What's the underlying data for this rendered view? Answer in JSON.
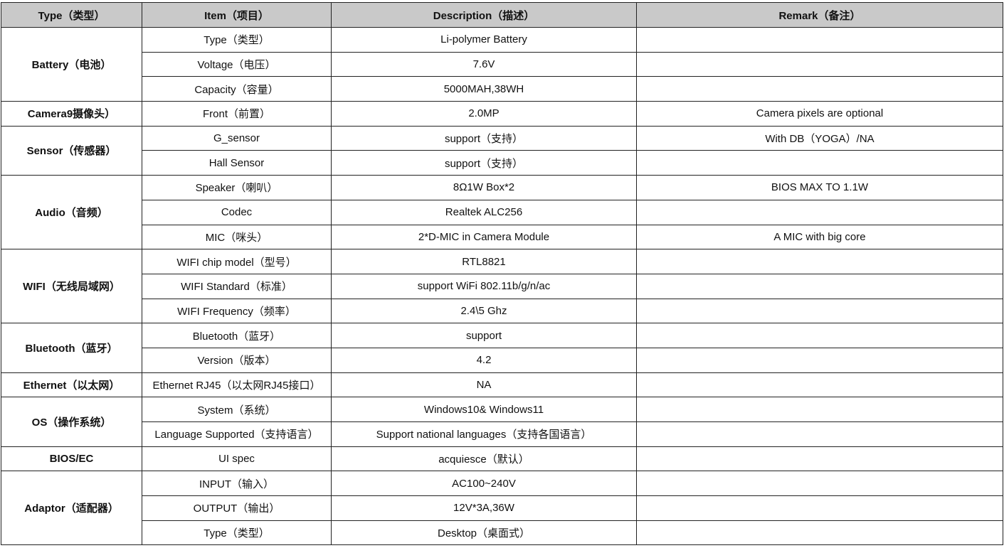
{
  "header": {
    "type": "Type（类型）",
    "item": "Item（项目）",
    "description": "Description（描述）",
    "remark": "Remark（备注）"
  },
  "colors": {
    "header_bg": "#c9c9c9",
    "border": "#222222"
  },
  "groups": [
    {
      "type": "Battery（电池）",
      "rows": [
        {
          "item": "Type（类型）",
          "description": "Li-polymer Battery",
          "remark": ""
        },
        {
          "item": "Voltage（电压）",
          "description": "7.6V",
          "remark": ""
        },
        {
          "item": "Capacity（容量）",
          "description": "5000MAH,38WH",
          "remark": ""
        }
      ]
    },
    {
      "type": "Camera9摄像头）",
      "rows": [
        {
          "item": "Front（前置）",
          "description": "2.0MP",
          "remark": "Camera pixels are optional"
        }
      ]
    },
    {
      "type": "Sensor（传感器）",
      "rows": [
        {
          "item": "G_sensor",
          "description": "support（支持）",
          "remark": "With DB（YOGA）/NA"
        },
        {
          "item": "Hall Sensor",
          "description": "support（支持）",
          "remark": ""
        }
      ]
    },
    {
      "type": "Audio（音频）",
      "rows": [
        {
          "item": "Speaker（喇叭）",
          "description": "8Ω1W Box*2",
          "remark": "BIOS MAX TO 1.1W"
        },
        {
          "item": "Codec",
          "description": "Realtek ALC256",
          "remark": ""
        },
        {
          "item": "MIC（咪头）",
          "description": "2*D-MIC in Camera Module",
          "remark": "A MIC with big core"
        }
      ]
    },
    {
      "type": "WIFI（无线局域网）",
      "rows": [
        {
          "item": "WIFI chip model（型号）",
          "description": "RTL8821",
          "remark": ""
        },
        {
          "item": "WIFI Standard（标准）",
          "description": "support WiFi 802.11b/g/n/ac",
          "remark": ""
        },
        {
          "item": "WIFI Frequency（频率）",
          "description": "2.4\\5 Ghz",
          "remark": ""
        }
      ]
    },
    {
      "type": "Bluetooth（蓝牙）",
      "rows": [
        {
          "item": "Bluetooth（蓝牙）",
          "description": "support",
          "remark": ""
        },
        {
          "item": "Version（版本）",
          "description": "4.2",
          "remark": ""
        }
      ]
    },
    {
      "type": "Ethernet（以太网）",
      "rows": [
        {
          "item": "Ethernet RJ45（以太网RJ45接口）",
          "description": "NA",
          "remark": ""
        }
      ]
    },
    {
      "type": "OS（操作系统）",
      "rows": [
        {
          "item": "System（系统）",
          "description": "Windows10& Windows11",
          "remark": ""
        },
        {
          "item": "Language Supported（支持语言）",
          "description": "Support national languages（支持各国语言）",
          "remark": ""
        }
      ]
    },
    {
      "type": "BIOS/EC",
      "rows": [
        {
          "item": "UI spec",
          "description": "acquiesce（默认）",
          "remark": ""
        }
      ]
    },
    {
      "type": "Adaptor（适配器）",
      "rows": [
        {
          "item": "INPUT（输入）",
          "description": "AC100~240V",
          "remark": ""
        },
        {
          "item": "OUTPUT（输出）",
          "description": "12V*3A,36W",
          "remark": ""
        },
        {
          "item": "Type（类型）",
          "description": "Desktop（桌面式）",
          "remark": ""
        }
      ]
    }
  ]
}
